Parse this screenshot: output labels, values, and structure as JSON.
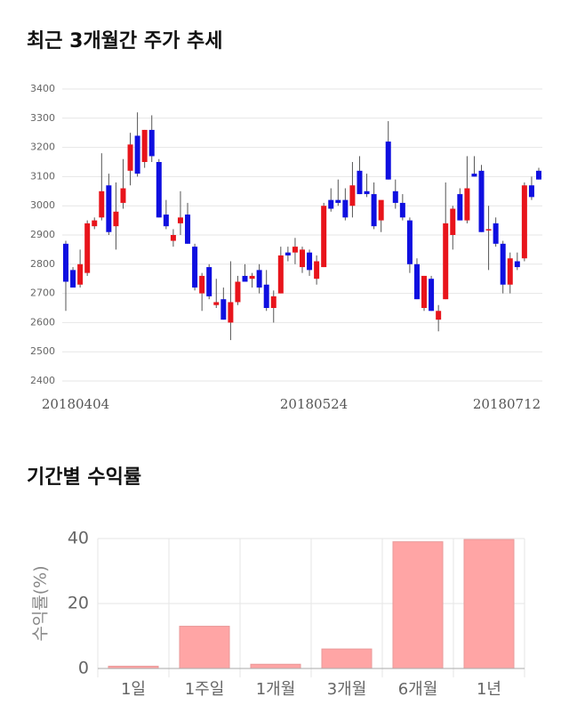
{
  "chart_data": [
    {
      "type": "candlestick",
      "title": "최근 3개월간 주가 추세",
      "categories": [
        "20180404",
        null,
        null,
        null,
        null,
        null,
        null,
        null,
        null,
        null,
        null,
        null,
        null,
        null,
        null,
        null,
        null,
        null,
        null,
        null,
        null,
        null,
        null,
        null,
        null,
        null,
        null,
        null,
        null,
        null,
        null,
        null,
        null,
        null,
        "20180524",
        null,
        null,
        null,
        null,
        null,
        null,
        null,
        null,
        null,
        null,
        null,
        null,
        null,
        null,
        null,
        null,
        null,
        null,
        null,
        null,
        null,
        null,
        null,
        null,
        null,
        null,
        null,
        null,
        null,
        null,
        null,
        "20180712"
      ],
      "open": [
        2870,
        2780,
        2730,
        2770,
        2930,
        2960,
        3070,
        2930,
        3010,
        3120,
        3240,
        3150,
        3260,
        3150,
        2970,
        2880,
        2940,
        2970,
        2860,
        2700,
        2790,
        2660,
        2680,
        2600,
        2670,
        2760,
        2750,
        2780,
        2730,
        2650,
        2700,
        2840,
        2840,
        2790,
        2840,
        2750,
        2790,
        3020,
        3020,
        3020,
        3000,
        3120,
        3050,
        3040,
        2950,
        3220,
        3050,
        3010,
        2950,
        2800,
        2650,
        2750,
        2610,
        2680,
        2900,
        3040,
        2950,
        3110,
        3120,
        2920,
        2940,
        2870,
        2730,
        2810,
        2820,
        3070,
        3120
      ],
      "high": [
        2880,
        2790,
        2850,
        2950,
        2960,
        3180,
        3110,
        3080,
        3160,
        3250,
        3320,
        3260,
        3310,
        3160,
        3020,
        2920,
        3050,
        3010,
        2870,
        2770,
        2800,
        2750,
        2720,
        2810,
        2760,
        2800,
        2770,
        2800,
        2780,
        2710,
        2860,
        2860,
        2890,
        2860,
        2850,
        2830,
        3010,
        3060,
        3090,
        3060,
        3150,
        3170,
        3110,
        3080,
        3010,
        3290,
        3090,
        3040,
        2960,
        2820,
        2760,
        2760,
        2660,
        3080,
        3000,
        3060,
        3170,
        3170,
        3140,
        3000,
        2960,
        2880,
        2840,
        2840,
        3080,
        3100,
        3130
      ],
      "low": [
        2640,
        2720,
        2720,
        2760,
        2920,
        2950,
        2900,
        2850,
        2990,
        3070,
        3100,
        3130,
        3150,
        2960,
        2920,
        2860,
        2900,
        2870,
        2710,
        2640,
        2680,
        2650,
        2610,
        2540,
        2660,
        2740,
        2720,
        2700,
        2640,
        2600,
        2700,
        2810,
        2800,
        2770,
        2760,
        2730,
        2790,
        2980,
        3000,
        2950,
        2960,
        3040,
        3030,
        2920,
        2910,
        3090,
        2990,
        2950,
        2770,
        2680,
        2640,
        2640,
        2570,
        2680,
        2850,
        2950,
        2940,
        3100,
        2910,
        2780,
        2860,
        2700,
        2700,
        2780,
        2810,
        3020,
        3090
      ],
      "close": [
        2740,
        2720,
        2800,
        2940,
        2950,
        3050,
        2910,
        2980,
        3060,
        3210,
        3110,
        3260,
        3170,
        2960,
        2930,
        2900,
        2960,
        2870,
        2720,
        2760,
        2690,
        2670,
        2610,
        2670,
        2740,
        2740,
        2760,
        2720,
        2650,
        2690,
        2830,
        2830,
        2860,
        2850,
        2780,
        2810,
        3000,
        2990,
        3010,
        2960,
        3070,
        3040,
        3040,
        2930,
        3020,
        3090,
        3010,
        2960,
        2800,
        2680,
        2760,
        2640,
        2640,
        2940,
        2990,
        2950,
        3060,
        3100,
        2910,
        2920,
        2870,
        2730,
        2820,
        2790,
        3070,
        3030,
        3090
      ],
      "up_color": "#e8141b",
      "down_color": "#0f0fe0",
      "ylim": [
        2400,
        3400
      ],
      "yticks": [
        2400,
        2500,
        2600,
        2700,
        2800,
        2900,
        3000,
        3100,
        3200,
        3300,
        3400
      ],
      "grid": true
    },
    {
      "type": "bar",
      "title": "기간별 수익률",
      "ylabel": "수익률(%)",
      "categories": [
        "1일",
        "1주일",
        "1개월",
        "3개월",
        "6개월",
        "1년"
      ],
      "values": [
        0.7,
        13,
        1.3,
        6,
        39,
        39.7
      ],
      "color": "#ffa5a5",
      "ylim": [
        0,
        40
      ],
      "yticks": [
        0,
        20,
        40
      ],
      "grid": true
    }
  ]
}
